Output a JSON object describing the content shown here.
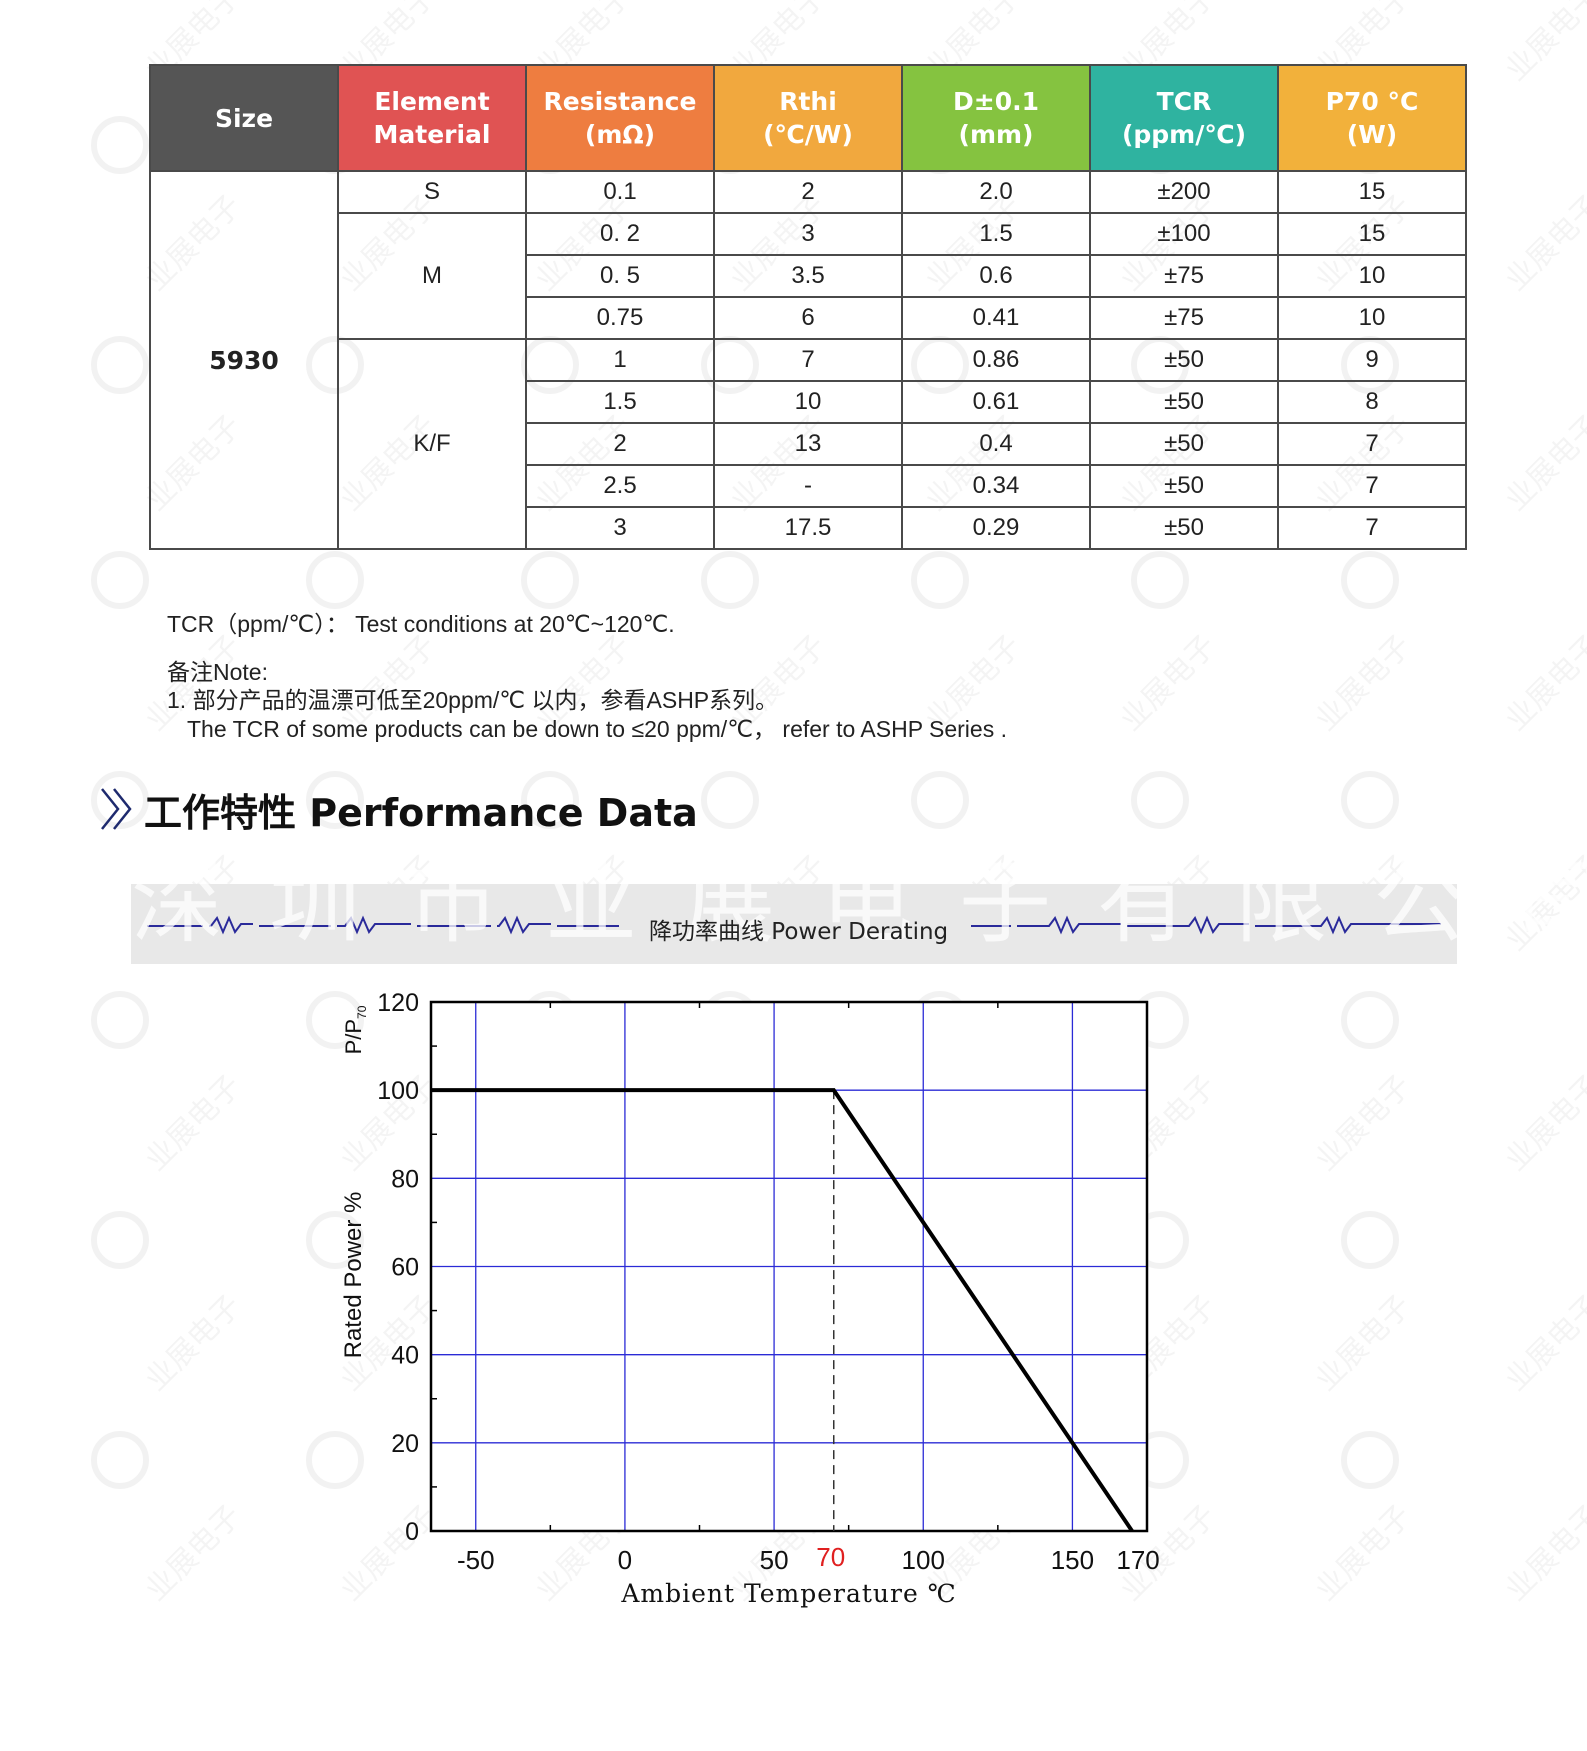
{
  "table": {
    "headers": [
      {
        "line1": "Size",
        "line2": ""
      },
      {
        "line1": "Element",
        "line2": "Material"
      },
      {
        "line1": "Resistance",
        "line2": "(mΩ)"
      },
      {
        "line1": "Rthi",
        "line2": "(℃/W)"
      },
      {
        "line1": "D±0.1",
        "line2": "(mm)"
      },
      {
        "line1": "TCR",
        "line2": "(ppm/℃)"
      },
      {
        "line1": "P70 °C",
        "line2": "(W)"
      }
    ],
    "size": "5930",
    "materials": [
      "S",
      "M",
      "K/F"
    ],
    "rows": [
      {
        "res": "0.1",
        "rth": "2",
        "dim": "2.0",
        "tcr": "±200",
        "p70": "15"
      },
      {
        "res": "0. 2",
        "rth": "3",
        "dim": "1.5",
        "tcr": "±100",
        "p70": "15"
      },
      {
        "res": "0. 5",
        "rth": "3.5",
        "dim": "0.6",
        "tcr": "±75",
        "p70": "10"
      },
      {
        "res": "0.75",
        "rth": "6",
        "dim": "0.41",
        "tcr": "±75",
        "p70": "10"
      },
      {
        "res": "1",
        "rth": "7",
        "dim": "0.86",
        "tcr": "±50",
        "p70": "9"
      },
      {
        "res": "1.5",
        "rth": "10",
        "dim": "0.61",
        "tcr": "±50",
        "p70": "8"
      },
      {
        "res": "2",
        "rth": "13",
        "dim": "0.4",
        "tcr": "±50",
        "p70": "7"
      },
      {
        "res": "2.5",
        "rth": "-",
        "dim": "0.34",
        "tcr": "±50",
        "p70": "7"
      },
      {
        "res": "3",
        "rth": "17.5",
        "dim": "0.29",
        "tcr": "±50",
        "p70": "7"
      }
    ]
  },
  "notes": {
    "tcr_condition": "TCR（ppm/℃）： Test conditions at 20℃~120℃.",
    "note_title": "备注Note:",
    "note_cn": "1. 部分产品的温漂可低至20ppm/℃ 以内，参看ASHP系列。",
    "note_en": "The TCR of some products can be down to ≤20 ppm/℃， refer to ASHP Series ."
  },
  "section_title": "工作特性 Performance Data",
  "banner": {
    "title": "降功率曲线 Power Derating",
    "watermark_text": "深圳市业展电子有限公司"
  },
  "watermark": {
    "text": "业展电子"
  },
  "chart_data": {
    "type": "line",
    "title": "",
    "xlabel": "Ambient Temperature ℃",
    "ylabel": "Rated Power %",
    "ylabel_top": "P/P",
    "ylabel_top_sub": "70",
    "xlim": [
      -65,
      175
    ],
    "ylim": [
      0,
      120
    ],
    "x_ticks": [
      -50,
      0,
      50,
      100,
      150,
      170
    ],
    "x_highlight_tick": {
      "value": 70,
      "color": "#e02020"
    },
    "y_ticks": [
      0,
      20,
      40,
      60,
      80,
      100,
      120
    ],
    "x_grid": [
      -50,
      0,
      50,
      100,
      150
    ],
    "y_grid": [
      20,
      40,
      60,
      80,
      100
    ],
    "grid": true,
    "grid_color": "#2b2bd6",
    "series": [
      {
        "x": [
          -65,
          70,
          170
        ],
        "y": [
          100,
          100,
          0
        ],
        "color": "#000000"
      }
    ],
    "reference_line": {
      "x": 70,
      "style": "dashed"
    }
  }
}
